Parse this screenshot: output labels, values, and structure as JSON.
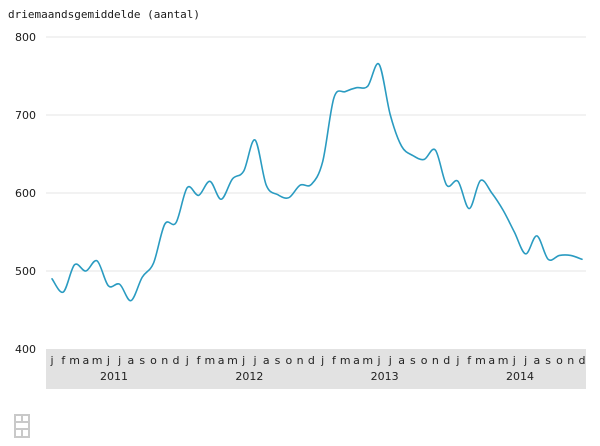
{
  "chart_data": {
    "type": "line",
    "ylabel": "driemaandsgemiddelde (aantal)",
    "ylim": [
      400,
      800
    ],
    "yticks": [
      400,
      500,
      600,
      700,
      800
    ],
    "grid": true,
    "month_letters": [
      "j",
      "f",
      "m",
      "a",
      "m",
      "j",
      "j",
      "a",
      "s",
      "o",
      "n",
      "d"
    ],
    "years": [
      "2011",
      "2012",
      "2013",
      "2014"
    ],
    "series": [
      {
        "color": "#2a9bc1",
        "values": [
          490,
          473,
          508,
          500,
          513,
          481,
          483,
          462,
          492,
          510,
          560,
          562,
          607,
          597,
          615,
          592,
          618,
          628,
          668,
          610,
          598,
          594,
          610,
          611,
          640,
          722,
          730,
          735,
          737,
          765,
          700,
          660,
          648,
          643,
          655,
          610,
          615,
          580,
          616,
          600,
          578,
          550,
          522,
          545,
          515,
          520,
          520,
          515
        ]
      }
    ]
  },
  "logo": {
    "icon": "cbs-logo-icon"
  }
}
